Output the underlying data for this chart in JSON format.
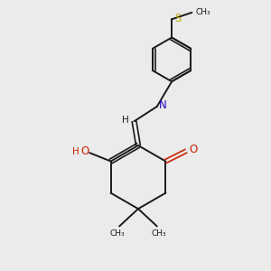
{
  "background_color": "#ebebeb",
  "bond_color": "#1a1a1a",
  "nitrogen_color": "#2200bb",
  "oxygen_color": "#cc2200",
  "sulfur_color": "#bbaa00",
  "figsize": [
    3.0,
    3.0
  ],
  "dpi": 100,
  "xlim": [
    0,
    10
  ],
  "ylim": [
    0,
    10
  ]
}
